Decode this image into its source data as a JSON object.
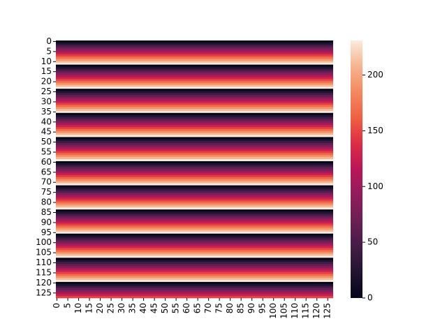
{
  "chart_data": {
    "type": "heatmap",
    "colormap": "rocket",
    "x": [
      0,
      null,
      null,
      null,
      null,
      5,
      null,
      null,
      null,
      null,
      10,
      null,
      null,
      null,
      null,
      15,
      null,
      null,
      null,
      null,
      20,
      null,
      null,
      null,
      null,
      25,
      null,
      null,
      null,
      null,
      30,
      null,
      null,
      null,
      null,
      35,
      null,
      null,
      null,
      null,
      40,
      null,
      null,
      null,
      null,
      45,
      null,
      null,
      null,
      null,
      50,
      null,
      null,
      null,
      null,
      55,
      null,
      null,
      null,
      null,
      60,
      null,
      null,
      null,
      null,
      65,
      null,
      null,
      null,
      null,
      70,
      null,
      null,
      null,
      null,
      75,
      null,
      null,
      null,
      null,
      80,
      null,
      null,
      null,
      null,
      85,
      null,
      null,
      null,
      null,
      90,
      null,
      null,
      null,
      null,
      95,
      null,
      null,
      null,
      null,
      100,
      null,
      null,
      null,
      null,
      105,
      null,
      null,
      null,
      null,
      110,
      null,
      null,
      null,
      null,
      115,
      null,
      null,
      null,
      null,
      120,
      null,
      null,
      null,
      null,
      125,
      null,
      null
    ],
    "y": [
      0,
      null,
      null,
      null,
      null,
      5,
      null,
      null,
      null,
      null,
      10,
      null,
      null,
      null,
      null,
      15,
      null,
      null,
      null,
      null,
      20,
      null,
      null,
      null,
      null,
      25,
      null,
      null,
      null,
      null,
      30,
      null,
      null,
      null,
      null,
      35,
      null,
      null,
      null,
      null,
      40,
      null,
      null,
      null,
      null,
      45,
      null,
      null,
      null,
      null,
      50,
      null,
      null,
      null,
      null,
      55,
      null,
      null,
      null,
      null,
      60,
      null,
      null,
      null,
      null,
      65,
      null,
      null,
      null,
      null,
      70,
      null,
      null,
      null,
      null,
      75,
      null,
      null,
      null,
      null,
      80,
      null,
      null,
      null,
      null,
      85,
      null,
      null,
      null,
      null,
      90,
      null,
      null,
      null,
      null,
      95,
      null,
      null,
      null,
      null,
      100,
      null,
      null,
      null,
      null,
      105,
      null,
      null,
      null,
      null,
      110,
      null,
      null,
      null,
      null,
      115,
      null,
      null,
      null,
      null,
      120,
      null,
      null,
      null,
      null,
      125,
      null,
      null
    ],
    "values": [
      0,
      21,
      42,
      63,
      84,
      105,
      126,
      147,
      168,
      189,
      210,
      231,
      0,
      21,
      42,
      63,
      84,
      105,
      126,
      147,
      168,
      189,
      210,
      231,
      0,
      21,
      42,
      63,
      84,
      105,
      126,
      147,
      168,
      189,
      210,
      231,
      0,
      21,
      42,
      63,
      84,
      105,
      126,
      147,
      168,
      189,
      210,
      231,
      0,
      21,
      42,
      63,
      84,
      105,
      126,
      147,
      168,
      189,
      210,
      231,
      0,
      21,
      42,
      63,
      84,
      105,
      126,
      147,
      168,
      189,
      210,
      231,
      0,
      21,
      42,
      63,
      84,
      105,
      126,
      147,
      168,
      189,
      210,
      231,
      0,
      21,
      42,
      63,
      84,
      105,
      126,
      147,
      168,
      189,
      210,
      231,
      0,
      21,
      42,
      63,
      84,
      105,
      126,
      147,
      168,
      189,
      210,
      231,
      0,
      21,
      42,
      63,
      84,
      105,
      126,
      147,
      168,
      189,
      210,
      231,
      0,
      21,
      42,
      63,
      84,
      105,
      126,
      147
    ],
    "clim": [
      0,
      231
    ],
    "cticks": [
      0,
      50,
      100,
      150,
      200
    ]
  }
}
